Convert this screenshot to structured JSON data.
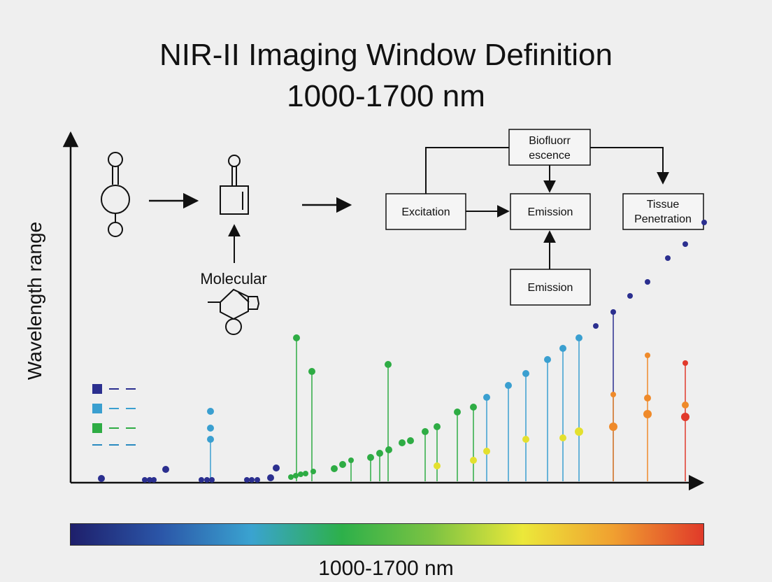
{
  "title": {
    "line1": "NIR-II Imaging Window Definition",
    "line2": "1000-1700 nm"
  },
  "axis": {
    "y_label": "Wavelength range"
  },
  "molecule": {
    "label": "Molecular"
  },
  "flow": {
    "biofluorescence": [
      "Biofluorr",
      "escence"
    ],
    "excitation": "Excitation",
    "emission_main": "Emission",
    "emission_lower": "Emission",
    "tissue": [
      "Tissue",
      "Penetration"
    ]
  },
  "spectrum": {
    "label": "1000-1700 nm",
    "stops": [
      "#1e1f6b",
      "#2b56a8",
      "#3aa3d0",
      "#2db04a",
      "#7cc342",
      "#ece83a",
      "#f0a030",
      "#e03a2a"
    ]
  },
  "colors": {
    "navy": "#2b2f8f",
    "blue": "#3a9fd0",
    "green": "#2eac44",
    "lime": "#8cc63f",
    "yellow": "#e3e02e",
    "orange": "#ef8a2a",
    "red": "#e1392b"
  },
  "legend_icons": [
    "navy-square-icon",
    "blue-square-icon",
    "green-square-icon",
    "dash-icon"
  ]
}
